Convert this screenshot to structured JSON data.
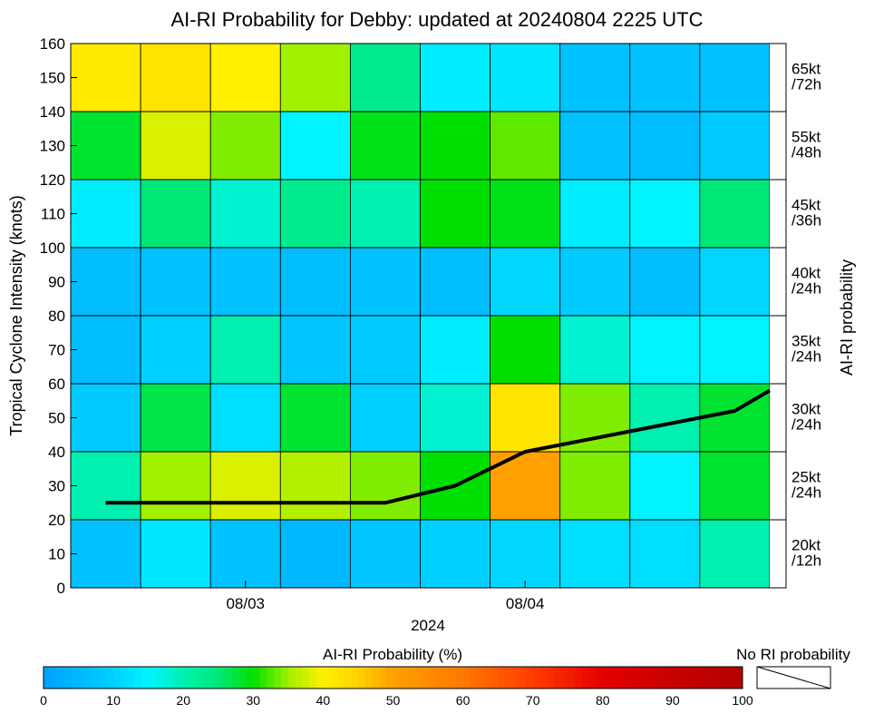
{
  "chart_data": {
    "type": "heatmap",
    "title": "AI-RI Probability for Debby: updated at 20240804 2225 UTC",
    "xlabel": "2024",
    "ylabel": "Tropical Cyclone Intensity (knots)",
    "right_label": "AI-RI probability",
    "x_ticks": [
      {
        "label": "08/03",
        "col": 2.5
      },
      {
        "label": "08/04",
        "col": 6.5
      }
    ],
    "ylim": [
      0,
      160
    ],
    "y_ticks": [
      0,
      10,
      20,
      30,
      40,
      50,
      60,
      70,
      80,
      90,
      100,
      110,
      120,
      130,
      140,
      150,
      160
    ],
    "row_labels": [
      {
        "line1": "20kt",
        "line2": "/12h"
      },
      {
        "line1": "25kt",
        "line2": "/24h"
      },
      {
        "line1": "30kt",
        "line2": "/24h"
      },
      {
        "line1": "35kt",
        "line2": "/24h"
      },
      {
        "line1": "40kt",
        "line2": "/24h"
      },
      {
        "line1": "45kt",
        "line2": "/36h"
      },
      {
        "line1": "55kt",
        "line2": "/48h"
      },
      {
        "line1": "65kt",
        "line2": "/72h"
      }
    ],
    "n_cols": 10,
    "probabilities": [
      [
        7,
        13,
        7,
        5,
        8,
        10,
        11,
        12,
        12,
        20
      ],
      [
        20,
        35,
        38,
        36,
        34,
        30,
        50,
        34,
        15,
        28
      ],
      [
        9,
        27,
        12,
        28,
        10,
        18,
        42,
        34,
        20,
        28
      ],
      [
        6,
        10,
        20,
        8,
        9,
        14,
        30,
        18,
        15,
        15
      ],
      [
        6,
        7,
        7,
        6,
        7,
        6,
        11,
        9,
        6,
        11
      ],
      [
        14,
        25,
        18,
        23,
        20,
        30,
        29,
        14,
        15,
        25
      ],
      [
        28,
        38,
        34,
        15,
        29,
        30,
        33,
        7,
        6,
        9
      ],
      [
        41,
        42,
        40,
        35,
        23,
        14,
        13,
        7,
        7,
        7
      ]
    ],
    "intensity_forecast": {
      "x": [
        0.5,
        1.5,
        2.5,
        3.5,
        4.5,
        5.5,
        6.5,
        7.5,
        8.5,
        9.5,
        10
      ],
      "y": [
        25,
        25,
        25,
        25,
        25,
        30,
        40,
        44,
        48,
        52,
        58
      ]
    },
    "colorbar": {
      "label": "AI-RI Probability (%)",
      "range": [
        0,
        100
      ],
      "ticks": [
        0,
        10,
        20,
        30,
        40,
        50,
        60,
        70,
        80,
        90,
        100
      ],
      "stops": [
        {
          "v": 0,
          "color": "#00a0ff"
        },
        {
          "v": 10,
          "color": "#00d0ff"
        },
        {
          "v": 15,
          "color": "#00f4ff"
        },
        {
          "v": 20,
          "color": "#00f0b0"
        },
        {
          "v": 25,
          "color": "#00e878"
        },
        {
          "v": 30,
          "color": "#00e000"
        },
        {
          "v": 35,
          "color": "#a0f000"
        },
        {
          "v": 40,
          "color": "#fff000"
        },
        {
          "v": 45,
          "color": "#ffd200"
        },
        {
          "v": 50,
          "color": "#ffa000"
        },
        {
          "v": 60,
          "color": "#ff7800"
        },
        {
          "v": 70,
          "color": "#ff3c00"
        },
        {
          "v": 80,
          "color": "#e40000"
        },
        {
          "v": 90,
          "color": "#c80000"
        },
        {
          "v": 100,
          "color": "#b40000"
        }
      ],
      "no_ri_label": "No RI probability"
    }
  }
}
